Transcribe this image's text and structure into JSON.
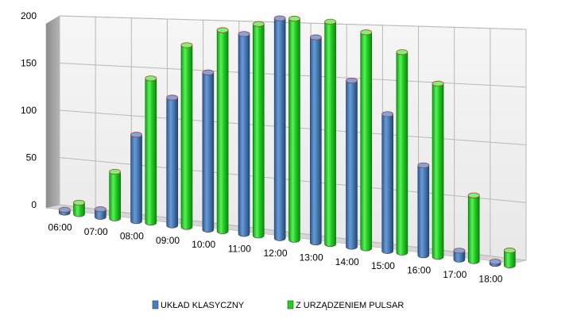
{
  "chart_data": {
    "type": "bar",
    "title": "",
    "xlabel": "",
    "ylabel": "",
    "ylim": [
      0,
      200
    ],
    "y_ticks": [
      "0",
      "50",
      "100",
      "150",
      "200"
    ],
    "grid": true,
    "legend_position": "bottom",
    "style": "3d-cylinder",
    "categories": [
      "06:00",
      "07:00",
      "08:00",
      "09:00",
      "10:00",
      "11:00",
      "12:00",
      "13:00",
      "14:00",
      "15:00",
      "16:00",
      "17:00",
      "18:00"
    ],
    "series": [
      {
        "name": "UKŁAD KLASYCZNY",
        "color": "#4a7ebb",
        "values": [
          3,
          8,
          88,
          128,
          155,
          194,
          210,
          193,
          154,
          125,
          81,
          8,
          2
        ]
      },
      {
        "name": "Z URZĄDZENIEM PULSAR",
        "color": "#22cc22",
        "values": [
          12,
          48,
          146,
          181,
          197,
          204,
          210,
          208,
          199,
          182,
          155,
          58,
          13
        ]
      }
    ]
  }
}
